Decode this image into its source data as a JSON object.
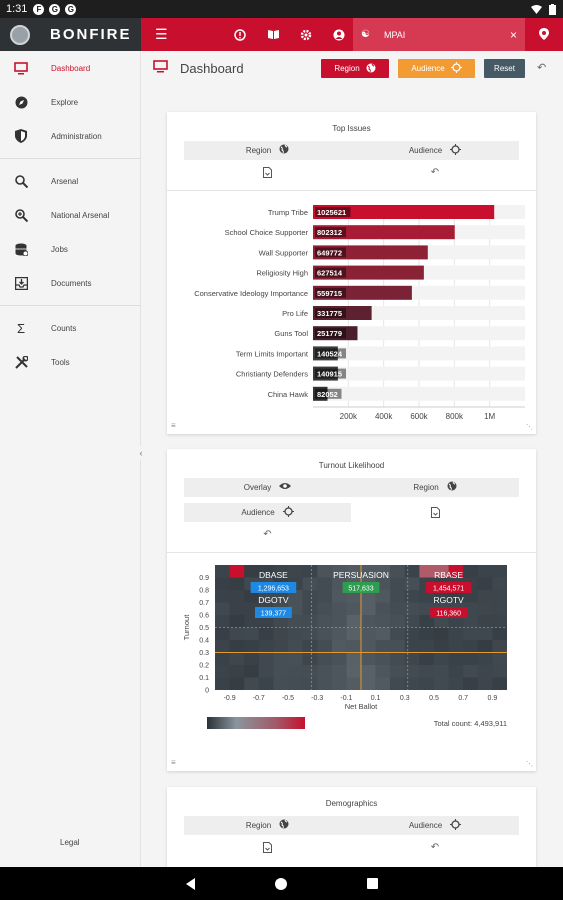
{
  "status_bar": {
    "time": "1:31"
  },
  "app": {
    "brand": "BONFIRE",
    "org_name": "MPAI"
  },
  "sidebar": {
    "items": [
      {
        "label": "Dashboard",
        "icon": "monitor-icon",
        "active": true
      },
      {
        "label": "Explore",
        "icon": "compass-icon"
      },
      {
        "label": "Administration",
        "icon": "shield-icon"
      },
      {
        "label": "Arsenal",
        "icon": "search-icon"
      },
      {
        "label": "National Arsenal",
        "icon": "zoom-search-icon"
      },
      {
        "label": "Jobs",
        "icon": "database-icon"
      },
      {
        "label": "Documents",
        "icon": "inbox-icon"
      },
      {
        "label": "Counts",
        "icon": "sigma-icon"
      },
      {
        "label": "Tools",
        "icon": "tools-icon"
      }
    ],
    "legal": "Legal"
  },
  "header": {
    "title": "Dashboard",
    "region_label": "Region",
    "audience_label": "Audience",
    "reset_label": "Reset"
  },
  "panels": {
    "top_issues": {
      "title": "Top Issues",
      "region_label": "Region",
      "audience_label": "Audience"
    },
    "turnout": {
      "title": "Turnout Likelihood",
      "overlay_label": "Overlay",
      "region_label": "Region",
      "audience_label": "Audience",
      "total_count": "Total count: 4,493,911"
    },
    "demographics": {
      "title": "Demographics",
      "region_label": "Region",
      "audience_label": "Audience"
    }
  },
  "chart_data": [
    {
      "type": "bar",
      "orientation": "horizontal",
      "title": "Top Issues",
      "categories": [
        "Trump Tribe",
        "School Choice Supporter",
        "Wall Supporter",
        "Religiosity High",
        "Conservative Ideology Importance",
        "Pro Life",
        "Guns Tool",
        "Term Limits Important",
        "Christianty Defenders",
        "China Hawk"
      ],
      "values": [
        1025621,
        802312,
        649772,
        627514,
        559715,
        331775,
        251779,
        140524,
        140915,
        82052
      ],
      "value_labels": [
        "1025621",
        "802312",
        "649772",
        "627514",
        "559715",
        "331775",
        "251779",
        "140524",
        "140915",
        "82052"
      ],
      "x_ticks": [
        200000,
        400000,
        600000,
        800000,
        1000000
      ],
      "x_tick_labels": [
        "200k",
        "400k",
        "600k",
        "800k",
        "1M"
      ],
      "xlim": [
        0,
        1200000
      ],
      "colors": [
        "#c8102e",
        "#a81b35",
        "#8f2137",
        "#8a2236",
        "#7a2336",
        "#5e2131",
        "#4a1f2b",
        "#3d3d3d",
        "#3a3a3a",
        "#333333"
      ]
    },
    {
      "type": "heatmap",
      "title": "Turnout Likelihood",
      "xlabel": "Net Ballot",
      "ylabel": "Turnout",
      "x_ticks": [
        -0.9,
        -0.7,
        -0.5,
        -0.3,
        -0.1,
        0.1,
        0.3,
        0.5,
        0.7,
        0.9
      ],
      "x_tick_labels": [
        "-0.9",
        "-0.7",
        "-0.5",
        "-0.3",
        "-0.1",
        "0.1",
        "0.3",
        "0.5",
        "0.7",
        "0.9"
      ],
      "y_ticks": [
        0,
        0.1,
        0.2,
        0.3,
        0.4,
        0.5,
        0.6,
        0.7,
        0.8,
        0.9
      ],
      "y_tick_labels": [
        "0",
        "0.1",
        "0.2",
        "0.3",
        "0.4",
        "0.5",
        "0.6",
        "0.7",
        "0.8",
        "0.9"
      ],
      "xlim": [
        -1,
        1
      ],
      "ylim": [
        0,
        1
      ],
      "crosshair": {
        "x": 0,
        "y": 0.3
      },
      "quadrants": [
        {
          "name": "DBASE",
          "value": "1,296,653",
          "color": "#1e88e5",
          "x": -0.6,
          "y": 0.8
        },
        {
          "name": "PERSUASION",
          "value": "517,633",
          "color": "#2e9d4f",
          "x": 0,
          "y": 0.8
        },
        {
          "name": "RBASE",
          "value": "1,454,571",
          "color": "#c8102e",
          "x": 0.6,
          "y": 0.8
        },
        {
          "name": "DGOTV",
          "value": "139,377",
          "color": "#1e88e5",
          "x": -0.6,
          "y": 0.6
        },
        {
          "name": "RGOTV",
          "value": "116,360",
          "color": "#c8102e",
          "x": 0.6,
          "y": 0.6
        }
      ]
    }
  ]
}
